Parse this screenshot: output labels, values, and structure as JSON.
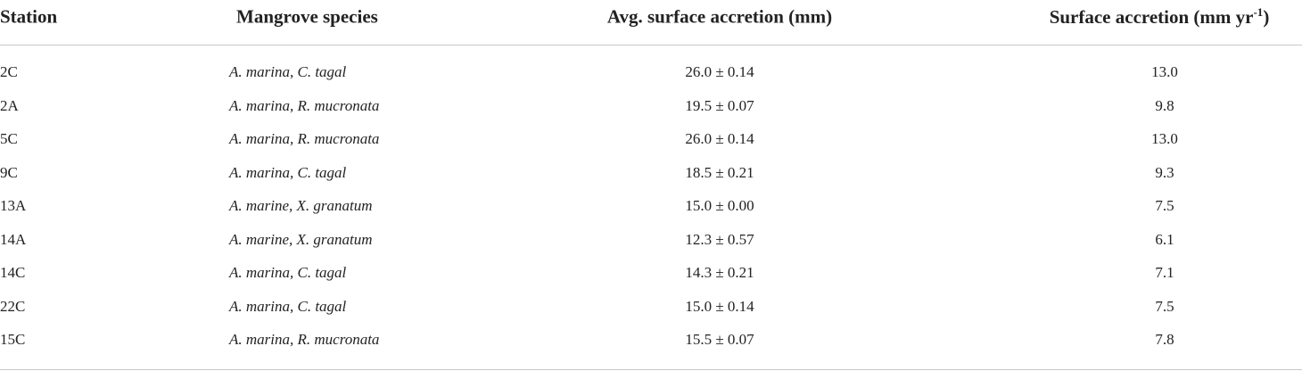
{
  "table": {
    "header": [
      "Station",
      "Mangrove species",
      "Avg. surface accretion (mm)",
      {
        "text": "Surface accretion (mm yr",
        "sup": "-1",
        "after": ")"
      }
    ],
    "rows": [
      [
        "2C",
        "A. marina, C. tagal",
        "26.0 ± 0.14",
        "13.0"
      ],
      [
        "2A",
        "A. marina, R. mucronata",
        "19.5 ± 0.07",
        "9.8"
      ],
      [
        "5C",
        "A. marina, R. mucronata",
        "26.0 ± 0.14",
        "13.0"
      ],
      [
        "9C",
        "A. marina, C. tagal",
        "18.5 ± 0.21",
        "9.3"
      ],
      [
        "13A",
        "A. marine, X. granatum",
        "15.0 ± 0.00",
        "7.5"
      ],
      [
        "14A",
        "A. marine, X. granatum",
        "12.3 ± 0.57",
        "6.1"
      ],
      [
        "14C",
        "A. marina, C. tagal",
        "14.3 ± 0.21",
        "7.1"
      ],
      [
        "22C",
        "A. marina, C. tagal",
        "15.0 ± 0.14",
        "7.5"
      ],
      [
        "15C",
        "A. marina, R. mucronata",
        "15.5 ± 0.07",
        "7.8"
      ]
    ]
  }
}
